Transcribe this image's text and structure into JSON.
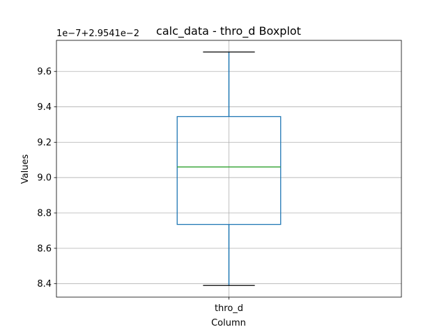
{
  "chart_data": {
    "type": "boxplot",
    "title": "calc_data - thro_d Boxplot",
    "xlabel": "Column",
    "ylabel": "Values",
    "offset_text": "1e−7+2.9541e−2",
    "categories": [
      "thro_d"
    ],
    "boxes": [
      {
        "category": "thro_d",
        "whisker_low": 8.39,
        "q1": 8.735,
        "median": 9.06,
        "q3": 9.345,
        "whisker_high": 9.71
      }
    ],
    "yticks": [
      8.4,
      8.6,
      8.8,
      9.0,
      9.2,
      9.4,
      9.6
    ],
    "ytick_labels": [
      "8.4",
      "8.6",
      "8.8",
      "9.0",
      "9.2",
      "9.4",
      "9.6"
    ],
    "ylim": [
      8.324,
      9.776
    ],
    "grid": true,
    "colors": {
      "box": "#1f77b4",
      "median": "#2ca02c",
      "cap": "#000000",
      "grid": "#b0b0b0"
    }
  }
}
